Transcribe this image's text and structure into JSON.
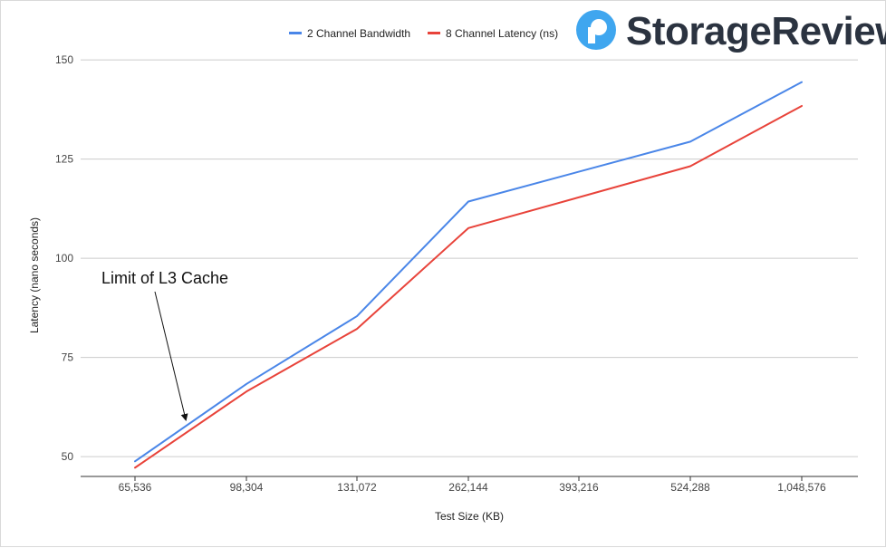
{
  "brand": {
    "name": "StorageReview",
    "logo_icon": "storagereview-logo-icon",
    "logo_color": "#3fa6ef",
    "text_color": "#2b3340"
  },
  "chart_data": {
    "type": "line",
    "title": "",
    "xlabel": "Test Size (KB)",
    "ylabel": "Latency (nano seconds)",
    "categories": [
      "65,536",
      "98,304",
      "131,072",
      "262,144",
      "393,216",
      "524,288",
      "1,048,576"
    ],
    "ylim": [
      45,
      153
    ],
    "yticks": [
      50,
      75,
      100,
      125,
      150
    ],
    "grid": true,
    "legend_position": "top",
    "series": [
      {
        "name": "2 Channel Bandwidth",
        "color": "#4a86e8",
        "values": [
          48.8,
          68.3,
          85.4,
          114.3,
          null,
          129.4,
          144.4
        ]
      },
      {
        "name": "8 Channel Latency (ns)",
        "color": "#e8433a",
        "values": [
          47.2,
          66.4,
          82.2,
          107.6,
          null,
          123.2,
          138.4
        ]
      }
    ],
    "annotations": [
      {
        "text": "Limit of L3 Cache",
        "points_to_category": "65,536"
      }
    ]
  }
}
